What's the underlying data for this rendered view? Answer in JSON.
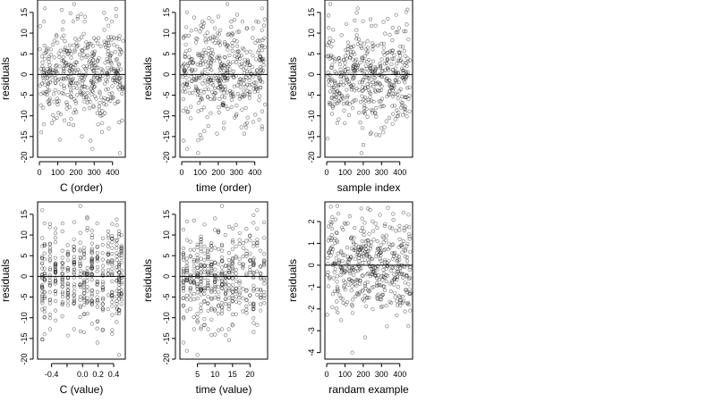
{
  "figure": {
    "background": "#ffffff",
    "point_color": "#000000"
  },
  "chart_data": [
    {
      "type": "scatter",
      "xlabel": "C (order)",
      "ylabel": "residuals",
      "xlim": [
        -10,
        470
      ],
      "ylim": [
        -20,
        18
      ],
      "xticks": [
        0,
        100,
        200,
        300,
        400
      ],
      "yticks": [
        -20,
        -15,
        -10,
        -5,
        0,
        5,
        10,
        15
      ],
      "ref_line": 0,
      "x_pattern": "uniform",
      "n_points": 450,
      "sd": 6,
      "highlight_points": [
        {
          "x": 30,
          "y": 16
        },
        {
          "x": 190,
          "y": 17
        },
        {
          "x": 210,
          "y": 14
        },
        {
          "x": 10,
          "y": -14
        },
        {
          "x": 280,
          "y": -16
        },
        {
          "x": 290,
          "y": -18
        },
        {
          "x": 440,
          "y": -19
        },
        {
          "x": 380,
          "y": -13
        }
      ]
    },
    {
      "type": "scatter",
      "xlabel": "time (order)",
      "ylabel": "residuals",
      "xlim": [
        -10,
        470
      ],
      "ylim": [
        -20,
        18
      ],
      "xticks": [
        0,
        100,
        200,
        300,
        400
      ],
      "yticks": [
        -20,
        -15,
        -10,
        -5,
        0,
        5,
        10,
        15
      ],
      "ref_line": 0,
      "x_pattern": "uniform",
      "n_points": 450,
      "sd": 6,
      "highlight_points": [
        {
          "x": 250,
          "y": 17
        },
        {
          "x": 200,
          "y": 14
        },
        {
          "x": 440,
          "y": 16
        },
        {
          "x": 10,
          "y": -16
        },
        {
          "x": 30,
          "y": -18
        },
        {
          "x": 90,
          "y": -19
        },
        {
          "x": 230,
          "y": -13
        }
      ]
    },
    {
      "type": "scatter",
      "xlabel": "sample index",
      "ylabel": "residuals",
      "xlim": [
        -10,
        470
      ],
      "ylim": [
        -20,
        18
      ],
      "xticks": [
        0,
        100,
        200,
        300,
        400
      ],
      "yticks": [
        -20,
        -15,
        -10,
        -5,
        0,
        5,
        10,
        15
      ],
      "ref_line": 0,
      "x_pattern": "uniform",
      "n_points": 450,
      "sd": 6,
      "highlight_points": [
        {
          "x": 20,
          "y": 17
        },
        {
          "x": 170,
          "y": 16
        },
        {
          "x": 190,
          "y": -19
        },
        {
          "x": 200,
          "y": -17
        },
        {
          "x": 310,
          "y": -14
        },
        {
          "x": 390,
          "y": -10
        }
      ]
    },
    {
      "type": "scatter",
      "xlabel": "C (value)",
      "ylabel": "residuals",
      "xlim": [
        -0.58,
        0.55
      ],
      "ylim": [
        -20,
        18
      ],
      "xticks": [
        -0.4,
        -0.2,
        0.0,
        0.2,
        0.4
      ],
      "xtick_labels": [
        "-0.4",
        "",
        "0.0",
        "0.2",
        "0.4"
      ],
      "yticks": [
        -20,
        -15,
        -10,
        -5,
        0,
        5,
        10,
        15
      ],
      "ref_line": 0,
      "x_pattern": "columns",
      "x_columns": [
        -0.52,
        -0.49,
        -0.42,
        -0.35,
        -0.26,
        -0.19,
        -0.11,
        -0.03,
        0.02,
        0.06,
        0.12,
        0.19,
        0.26,
        0.33,
        0.38,
        0.44,
        0.47,
        0.5
      ],
      "n_points": 450,
      "sd": 6,
      "highlight_points": [
        {
          "x": -0.52,
          "y": 16
        },
        {
          "x": -0.03,
          "y": 17
        },
        {
          "x": 0.06,
          "y": 14
        },
        {
          "x": 0.19,
          "y": -16
        },
        {
          "x": 0.26,
          "y": -13
        },
        {
          "x": 0.47,
          "y": -19
        },
        {
          "x": -0.49,
          "y": -14
        }
      ]
    },
    {
      "type": "scatter",
      "xlabel": "time (value)",
      "ylabel": "residuals",
      "xlim": [
        0,
        25
      ],
      "ylim": [
        -20,
        18
      ],
      "xticks": [
        5,
        10,
        15,
        20
      ],
      "yticks": [
        -20,
        -15,
        -10,
        -5,
        0,
        5,
        10,
        15
      ],
      "ref_line": 0,
      "x_pattern": "columns",
      "x_columns": [
        1,
        2,
        3,
        4,
        5,
        6,
        7,
        8,
        9,
        10,
        11,
        12,
        13,
        14,
        15,
        16,
        17,
        18,
        19,
        20,
        21,
        22,
        23,
        24
      ],
      "n_points": 450,
      "sd": 6,
      "highlight_points": [
        {
          "x": 12,
          "y": 17
        },
        {
          "x": 10,
          "y": 14
        },
        {
          "x": 22,
          "y": 16
        },
        {
          "x": 1,
          "y": -16
        },
        {
          "x": 2,
          "y": -18
        },
        {
          "x": 5,
          "y": -19
        },
        {
          "x": 11,
          "y": -13
        }
      ]
    },
    {
      "type": "scatter",
      "xlabel": "randam example",
      "ylabel": "residuals",
      "xlim": [
        -10,
        470
      ],
      "ylim": [
        -4.3,
        2.9
      ],
      "xticks": [
        0,
        100,
        200,
        300,
        400
      ],
      "yticks": [
        -4,
        -3,
        -2,
        -1,
        0,
        1,
        2
      ],
      "ref_line": 0,
      "x_pattern": "uniform",
      "n_points": 450,
      "sd": 1,
      "highlight_points": [
        {
          "x": 190,
          "y": 2.6
        },
        {
          "x": 420,
          "y": 2.4
        },
        {
          "x": 140,
          "y": -4.0
        },
        {
          "x": 210,
          "y": -3.3
        },
        {
          "x": 330,
          "y": -2.8
        },
        {
          "x": 30,
          "y": 2.2
        }
      ]
    }
  ]
}
